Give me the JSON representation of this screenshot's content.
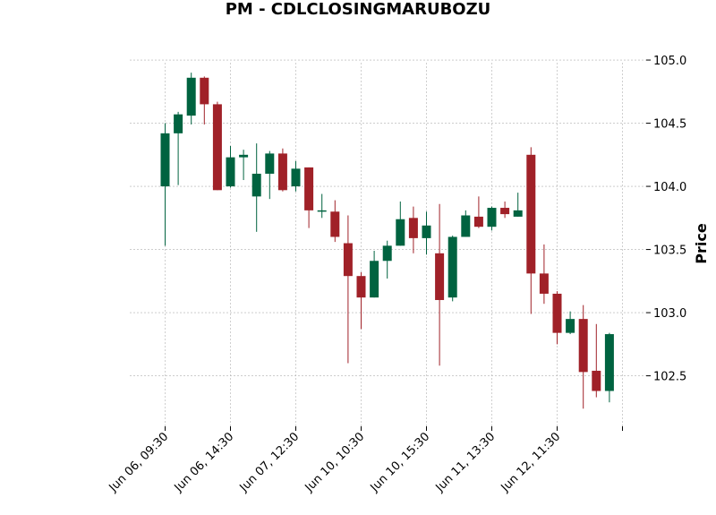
{
  "chart_data": {
    "type": "candlestick",
    "title": "PM - CDLCLOSINGMARUBOZU",
    "ylabel": "Price",
    "xlabel": "",
    "ylim": [
      102.1,
      105.05
    ],
    "yticks": [
      102.5,
      103.0,
      103.5,
      104.0,
      104.5,
      105.0
    ],
    "ytick_labels": [
      "102.5",
      "103.0",
      "103.5",
      "104.0",
      "104.5",
      "105.0"
    ],
    "xtick_labels": [
      {
        "index": 0,
        "label": "Jun 06, 09:30"
      },
      {
        "index": 5,
        "label": "Jun 06, 14:30"
      },
      {
        "index": 10,
        "label": "Jun 07, 12:30"
      },
      {
        "index": 15,
        "label": "Jun 10, 10:30"
      },
      {
        "index": 20,
        "label": "Jun 10, 15:30"
      },
      {
        "index": 25,
        "label": "Jun 11, 13:30"
      },
      {
        "index": 30,
        "label": "Jun 12, 11:30"
      },
      {
        "index": 35,
        "label": ""
      }
    ],
    "grid": true,
    "up_color": "#006340",
    "down_color": "#a02128",
    "candles": [
      {
        "open": 104.0,
        "high": 104.5,
        "low": 103.53,
        "close": 104.42
      },
      {
        "open": 104.42,
        "high": 104.59,
        "low": 104.01,
        "close": 104.57
      },
      {
        "open": 104.56,
        "high": 104.9,
        "low": 104.49,
        "close": 104.86
      },
      {
        "open": 104.86,
        "high": 104.87,
        "low": 104.49,
        "close": 104.65
      },
      {
        "open": 104.65,
        "high": 104.67,
        "low": 103.97,
        "close": 103.97
      },
      {
        "open": 104.0,
        "high": 104.32,
        "low": 103.99,
        "close": 104.23
      },
      {
        "open": 104.23,
        "high": 104.29,
        "low": 104.05,
        "close": 104.25
      },
      {
        "open": 103.92,
        "high": 104.34,
        "low": 103.64,
        "close": 104.1
      },
      {
        "open": 104.1,
        "high": 104.28,
        "low": 103.9,
        "close": 104.26
      },
      {
        "open": 104.26,
        "high": 104.3,
        "low": 103.96,
        "close": 103.97
      },
      {
        "open": 104.0,
        "high": 104.2,
        "low": 103.96,
        "close": 104.14
      },
      {
        "open": 104.15,
        "high": 104.15,
        "low": 103.67,
        "close": 103.81
      },
      {
        "open": 103.8,
        "high": 103.94,
        "low": 103.75,
        "close": 103.81
      },
      {
        "open": 103.8,
        "high": 103.89,
        "low": 103.56,
        "close": 103.6
      },
      {
        "open": 103.55,
        "high": 103.77,
        "low": 102.6,
        "close": 103.29
      },
      {
        "open": 103.29,
        "high": 103.32,
        "low": 102.87,
        "close": 103.12
      },
      {
        "open": 103.12,
        "high": 103.49,
        "low": 103.12,
        "close": 103.41
      },
      {
        "open": 103.41,
        "high": 103.57,
        "low": 103.27,
        "close": 103.53
      },
      {
        "open": 103.53,
        "high": 103.88,
        "low": 103.53,
        "close": 103.74
      },
      {
        "open": 103.75,
        "high": 103.84,
        "low": 103.47,
        "close": 103.59
      },
      {
        "open": 103.59,
        "high": 103.8,
        "low": 103.46,
        "close": 103.69
      },
      {
        "open": 103.47,
        "high": 103.86,
        "low": 102.58,
        "close": 103.1
      },
      {
        "open": 103.12,
        "high": 103.61,
        "low": 103.09,
        "close": 103.6
      },
      {
        "open": 103.6,
        "high": 103.81,
        "low": 103.6,
        "close": 103.77
      },
      {
        "open": 103.76,
        "high": 103.92,
        "low": 103.67,
        "close": 103.68
      },
      {
        "open": 103.68,
        "high": 103.84,
        "low": 103.65,
        "close": 103.83
      },
      {
        "open": 103.83,
        "high": 103.88,
        "low": 103.75,
        "close": 103.78
      },
      {
        "open": 103.76,
        "high": 103.95,
        "low": 103.76,
        "close": 103.81
      },
      {
        "open": 104.25,
        "high": 104.31,
        "low": 102.99,
        "close": 103.31
      },
      {
        "open": 103.31,
        "high": 103.54,
        "low": 103.07,
        "close": 103.15
      },
      {
        "open": 103.15,
        "high": 103.17,
        "low": 102.75,
        "close": 102.84
      },
      {
        "open": 102.84,
        "high": 103.01,
        "low": 102.83,
        "close": 102.95
      },
      {
        "open": 102.95,
        "high": 103.06,
        "low": 102.24,
        "close": 102.53
      },
      {
        "open": 102.54,
        "high": 102.91,
        "low": 102.33,
        "close": 102.38
      },
      {
        "open": 102.38,
        "high": 102.84,
        "low": 102.29,
        "close": 102.83
      }
    ]
  }
}
